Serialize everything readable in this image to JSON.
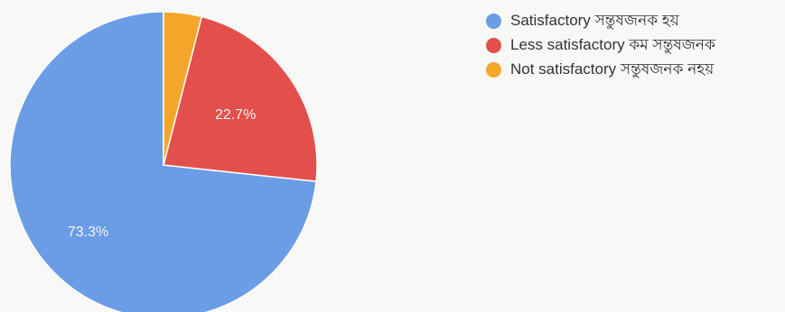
{
  "chart_data": {
    "type": "pie",
    "slices": [
      {
        "label": "Satisfactory সন্তুষজনক হয়",
        "value": 73.3,
        "display": "73.3%",
        "color": "#6a9de6"
      },
      {
        "label": "Less satisfactory কম সন্তুষজনক",
        "value": 22.7,
        "display": "22.7%",
        "color": "#e3504b"
      },
      {
        "label": "Not satisfactory সন্তুষজনক নহয়",
        "value": 4.0,
        "display": "",
        "color": "#f4a62a"
      }
    ],
    "legend_position": "top-right"
  }
}
